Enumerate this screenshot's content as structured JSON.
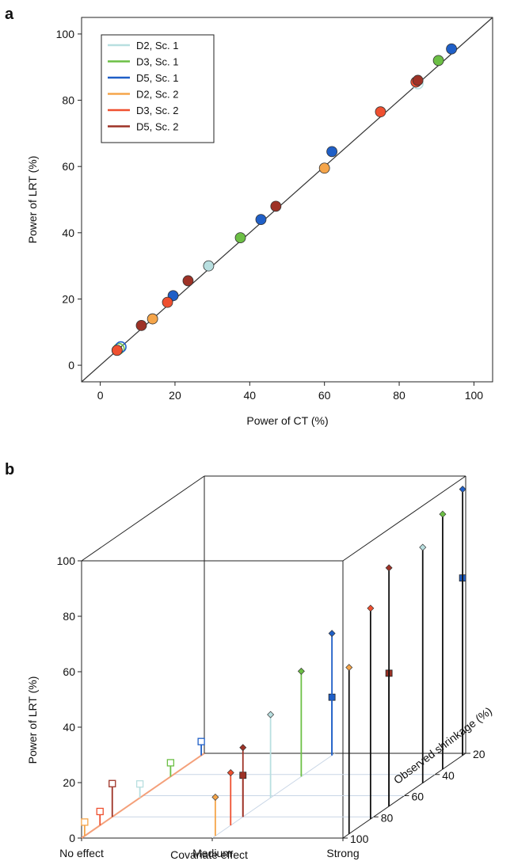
{
  "panel_a": {
    "panel_label": "a",
    "xlabel": "Power of CT (%)",
    "ylabel": "Power of LRT (%)",
    "xticks": [
      "0",
      "20",
      "40",
      "60",
      "80",
      "100"
    ],
    "yticks": [
      "0",
      "20",
      "40",
      "60",
      "80",
      "100"
    ]
  },
  "panel_b": {
    "panel_label": "b",
    "xlabel": "Covariate effect",
    "ylabel": "Power of LRT (%)",
    "zlabel": "Observed shrinkage (%)",
    "xticks": [
      "No effect",
      "Medium",
      "Strong"
    ],
    "yticks": [
      "0",
      "20",
      "40",
      "60",
      "80",
      "100"
    ],
    "zticks": [
      "20",
      "40",
      "60",
      "80",
      "100"
    ]
  },
  "colors": {
    "D2, Sc. 1": "#b8dfe0",
    "D3, Sc. 1": "#6cbf45",
    "D5, Sc. 1": "#1f5fc7",
    "D2, Sc. 2": "#f5a54a",
    "D3, Sc. 2": "#ef5030",
    "D5, Sc. 2": "#9e3226",
    "Black": "#111111"
  },
  "chart_data": [
    {
      "type": "scatter",
      "xlabel": "Power of CT (%)",
      "ylabel": "Power of LRT (%)",
      "xlim": [
        -5,
        105
      ],
      "ylim": [
        -5,
        105
      ],
      "reference_line": "y = x",
      "legend": [
        "D2, Sc. 1",
        "D3, Sc. 1",
        "D5, Sc. 1",
        "D2, Sc. 2",
        "D3, Sc. 2",
        "D5, Sc. 2"
      ],
      "legend_position": "top-left",
      "series": [
        {
          "name": "D2, Sc. 1",
          "points": [
            [
              5,
              5,
              "hollow"
            ],
            [
              29,
              30,
              "filled"
            ],
            [
              85,
              85,
              "hollow"
            ]
          ]
        },
        {
          "name": "D3, Sc. 1",
          "points": [
            [
              5,
              5,
              "hollow"
            ],
            [
              37.5,
              38.5,
              "filled"
            ],
            [
              90.5,
              92,
              "filled"
            ]
          ]
        },
        {
          "name": "D5, Sc. 1",
          "points": [
            [
              5.5,
              5.5,
              "hollow"
            ],
            [
              19.5,
              21,
              "filled"
            ],
            [
              43,
              44,
              "filled"
            ],
            [
              62,
              64.5,
              "filled"
            ],
            [
              94,
              95.5,
              "filled"
            ]
          ]
        },
        {
          "name": "D2, Sc. 2",
          "points": [
            [
              4.5,
              4.5,
              "filled"
            ],
            [
              14,
              14,
              "filled"
            ],
            [
              60,
              59.5,
              "filled"
            ]
          ]
        },
        {
          "name": "D3, Sc. 2",
          "points": [
            [
              4.5,
              4.5,
              "filled"
            ],
            [
              18,
              19,
              "filled"
            ],
            [
              75,
              76.5,
              "filled"
            ],
            [
              84.5,
              85.5,
              "filled"
            ]
          ]
        },
        {
          "name": "D5, Sc. 2",
          "points": [
            [
              11,
              12,
              "filled"
            ],
            [
              23.5,
              25.5,
              "filled"
            ],
            [
              47,
              48,
              "filled"
            ],
            [
              85,
              86,
              "filled"
            ]
          ]
        }
      ]
    },
    {
      "type": "3d-stem",
      "xlabel": "Covariate effect",
      "ylabel": "Power of LRT (%)",
      "zlabel": "Observed shrinkage (%)",
      "categories": [
        "No effect",
        "Medium",
        "Strong"
      ],
      "ylim": [
        0,
        100
      ],
      "shrinkage_range": [
        20,
        100
      ],
      "series": [
        {
          "name": "D2, Sc. 1",
          "points": [
            {
              "effect": "No effect",
              "shrinkage": 62,
              "power": 5,
              "marker": "hollow-square"
            },
            {
              "effect": "Medium",
              "shrinkage": 62,
              "power": 30,
              "marker": "diamond"
            },
            {
              "effect": "Strong",
              "shrinkage": 48,
              "power": 85,
              "marker": "diamond"
            }
          ]
        },
        {
          "name": "D3, Sc. 1",
          "points": [
            {
              "effect": "No effect",
              "shrinkage": 42,
              "power": 5,
              "marker": "hollow-square"
            },
            {
              "effect": "Medium",
              "shrinkage": 42,
              "power": 38,
              "marker": "diamond"
            },
            {
              "effect": "Strong",
              "shrinkage": 35,
              "power": 92,
              "marker": "diamond"
            }
          ]
        },
        {
          "name": "D5, Sc. 1",
          "points": [
            {
              "effect": "No effect",
              "shrinkage": 22,
              "power": 5,
              "marker": "hollow-square"
            },
            {
              "effect": "Medium",
              "shrinkage": 22,
              "power": 21,
              "marker": "square"
            },
            {
              "effect": "Medium",
              "shrinkage": 22,
              "power": 44,
              "marker": "diamond"
            },
            {
              "effect": "Strong",
              "shrinkage": 22,
              "power": 64,
              "marker": "square"
            },
            {
              "effect": "Strong",
              "shrinkage": 22,
              "power": 96,
              "marker": "diamond"
            }
          ]
        },
        {
          "name": "D2, Sc. 2",
          "points": [
            {
              "effect": "No effect",
              "shrinkage": 98,
              "power": 5,
              "marker": "hollow-square"
            },
            {
              "effect": "Medium",
              "shrinkage": 98,
              "power": 14,
              "marker": "diamond"
            },
            {
              "effect": "Strong",
              "shrinkage": 96,
              "power": 60,
              "marker": "diamond"
            }
          ]
        },
        {
          "name": "D3, Sc. 2",
          "points": [
            {
              "effect": "No effect",
              "shrinkage": 88,
              "power": 5,
              "marker": "hollow-square"
            },
            {
              "effect": "Medium",
              "shrinkage": 88,
              "power": 19,
              "marker": "diamond"
            },
            {
              "effect": "Strong",
              "shrinkage": 82,
              "power": 76,
              "marker": "diamond"
            }
          ]
        },
        {
          "name": "D5, Sc. 2",
          "points": [
            {
              "effect": "No effect",
              "shrinkage": 80,
              "power": 12,
              "marker": "hollow-square"
            },
            {
              "effect": "Medium",
              "shrinkage": 80,
              "power": 15,
              "marker": "square"
            },
            {
              "effect": "Medium",
              "shrinkage": 80,
              "power": 25,
              "marker": "diamond"
            },
            {
              "effect": "Strong",
              "shrinkage": 70,
              "power": 48,
              "marker": "square"
            },
            {
              "effect": "Strong",
              "shrinkage": 70,
              "power": 86,
              "marker": "diamond"
            }
          ]
        }
      ]
    }
  ]
}
